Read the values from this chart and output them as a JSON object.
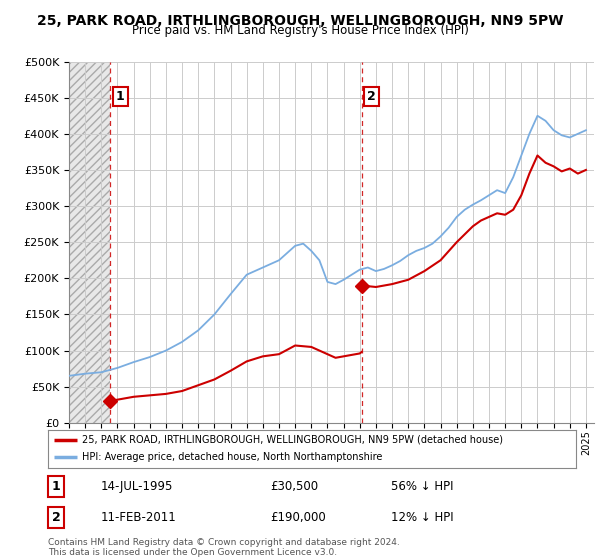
{
  "title": "25, PARK ROAD, IRTHLINGBOROUGH, WELLINGBOROUGH, NN9 5PW",
  "subtitle": "Price paid vs. HM Land Registry's House Price Index (HPI)",
  "ylim": [
    0,
    500000
  ],
  "yticks": [
    0,
    50000,
    100000,
    150000,
    200000,
    250000,
    300000,
    350000,
    400000,
    450000,
    500000
  ],
  "ytick_labels": [
    "£0",
    "£50K",
    "£100K",
    "£150K",
    "£200K",
    "£250K",
    "£300K",
    "£350K",
    "£400K",
    "£450K",
    "£500K"
  ],
  "xmin": 1993,
  "xmax": 2025.5,
  "purchase1_date": 1995.54,
  "purchase1_price": 30500,
  "purchase1_label": "1",
  "purchase1_info": "14-JUL-1995",
  "purchase1_amount": "£30,500",
  "purchase1_pct": "56% ↓ HPI",
  "purchase2_date": 2011.11,
  "purchase2_price": 190000,
  "purchase2_label": "2",
  "purchase2_info": "11-FEB-2011",
  "purchase2_amount": "£190,000",
  "purchase2_pct": "12% ↓ HPI",
  "legend_line1": "25, PARK ROAD, IRTHLINGBOROUGH, WELLINGBOROUGH, NN9 5PW (detached house)",
  "legend_line2": "HPI: Average price, detached house, North Northamptonshire",
  "footer": "Contains HM Land Registry data © Crown copyright and database right 2024.\nThis data is licensed under the Open Government Licence v3.0.",
  "red_color": "#cc0000",
  "blue_color": "#7aade0",
  "grid_color": "#cccccc",
  "background_color": "#ffffff",
  "hatch_facecolor": "#e8e8e8"
}
